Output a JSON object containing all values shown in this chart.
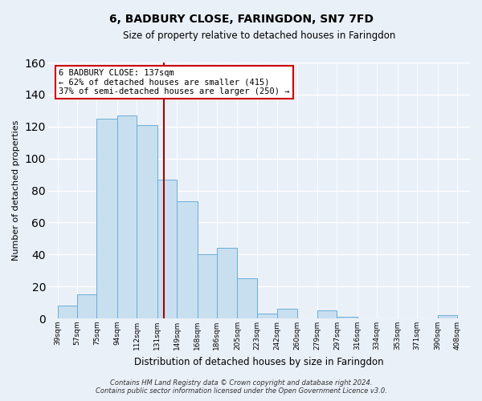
{
  "title": "6, BADBURY CLOSE, FARINGDON, SN7 7FD",
  "subtitle": "Size of property relative to detached houses in Faringdon",
  "xlabel": "Distribution of detached houses by size in Faringdon",
  "ylabel": "Number of detached properties",
  "bar_left_edges": [
    39,
    57,
    75,
    94,
    112,
    131,
    149,
    168,
    186,
    205,
    223,
    242,
    260,
    279,
    297,
    316,
    334,
    353,
    371,
    390
  ],
  "bar_heights": [
    8,
    15,
    125,
    127,
    121,
    87,
    73,
    40,
    44,
    25,
    3,
    6,
    0,
    5,
    1,
    0,
    0,
    0,
    0,
    2
  ],
  "bar_widths": [
    18,
    18,
    19,
    18,
    19,
    18,
    19,
    18,
    19,
    18,
    19,
    18,
    18,
    18,
    19,
    18,
    19,
    18,
    19,
    18
  ],
  "tick_labels": [
    "39sqm",
    "57sqm",
    "75sqm",
    "94sqm",
    "112sqm",
    "131sqm",
    "149sqm",
    "168sqm",
    "186sqm",
    "205sqm",
    "223sqm",
    "242sqm",
    "260sqm",
    "279sqm",
    "297sqm",
    "316sqm",
    "334sqm",
    "353sqm",
    "371sqm",
    "390sqm",
    "408sqm"
  ],
  "bar_color": "#c8dff0",
  "bar_edge_color": "#6baed6",
  "property_line_x": 137,
  "property_line_color": "#aa0000",
  "annotation_line1": "6 BADBURY CLOSE: 137sqm",
  "annotation_line2": "← 62% of detached houses are smaller (415)",
  "annotation_line3": "37% of semi-detached houses are larger (250) →",
  "annotation_box_color": "#ffffff",
  "annotation_box_edge": "#cc0000",
  "ylim": [
    0,
    160
  ],
  "xlim_left": 30,
  "xlim_right": 420,
  "footer_line1": "Contains HM Land Registry data © Crown copyright and database right 2024.",
  "footer_line2": "Contains public sector information licensed under the Open Government Licence v3.0.",
  "background_color": "#eaf0f8",
  "grid_color": "#ffffff",
  "title_fontsize": 10,
  "subtitle_fontsize": 8.5,
  "ylabel_fontsize": 8,
  "xlabel_fontsize": 8.5,
  "tick_fontsize": 6.5,
  "annotation_fontsize": 7.5,
  "footer_fontsize": 6
}
